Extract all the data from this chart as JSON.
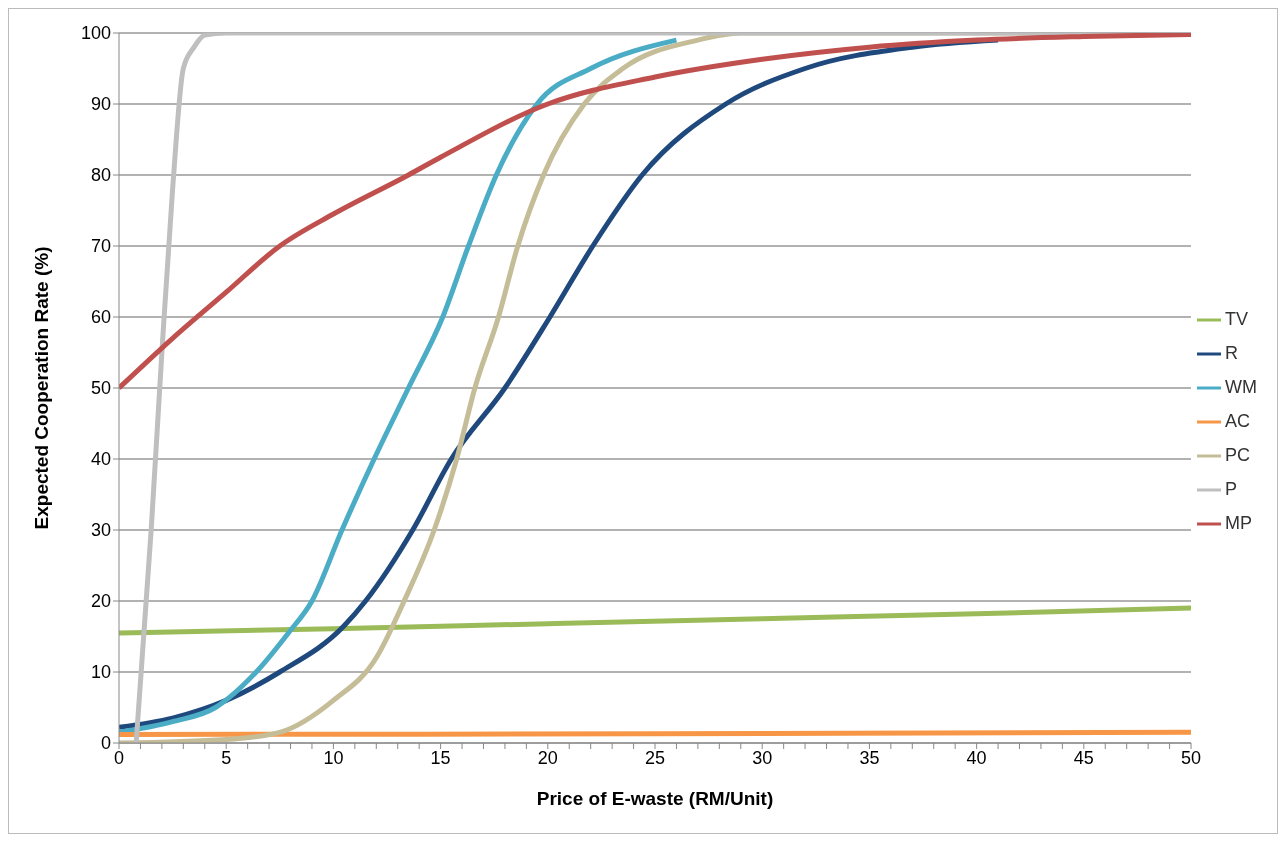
{
  "chart_data": {
    "type": "line",
    "xlabel": "Price of E-waste (RM/Unit)",
    "ylabel": "Expected Cooperation Rate (%)",
    "xlim": [
      0,
      50
    ],
    "ylim": [
      0,
      100
    ],
    "xticks": [
      0,
      {
        "value": 1,
        "label": null
      },
      {
        "value": 2,
        "label": null
      },
      {
        "value": 3,
        "label": null
      },
      {
        "value": 4,
        "label": null
      },
      5,
      {
        "value": 6,
        "label": null
      },
      {
        "value": 7,
        "label": null
      },
      {
        "value": 8,
        "label": null
      },
      {
        "value": 9,
        "label": null
      },
      10,
      {
        "value": 11,
        "label": null
      },
      {
        "value": 12,
        "label": null
      },
      {
        "value": 13,
        "label": null
      },
      {
        "value": 14,
        "label": null
      },
      15,
      {
        "value": 16,
        "label": null
      },
      {
        "value": 17,
        "label": null
      },
      {
        "value": 18,
        "label": null
      },
      {
        "value": 19,
        "label": null
      },
      20,
      {
        "value": 21,
        "label": null
      },
      {
        "value": 22,
        "label": null
      },
      {
        "value": 23,
        "label": null
      },
      {
        "value": 24,
        "label": null
      },
      25,
      {
        "value": 26,
        "label": null
      },
      {
        "value": 27,
        "label": null
      },
      {
        "value": 28,
        "label": null
      },
      {
        "value": 29,
        "label": null
      },
      30,
      {
        "value": 31,
        "label": null
      },
      {
        "value": 32,
        "label": null
      },
      {
        "value": 33,
        "label": null
      },
      {
        "value": 34,
        "label": null
      },
      35,
      {
        "value": 36,
        "label": null
      },
      {
        "value": 37,
        "label": null
      },
      {
        "value": 38,
        "label": null
      },
      {
        "value": 39,
        "label": null
      },
      40,
      {
        "value": 41,
        "label": null
      },
      {
        "value": 42,
        "label": null
      },
      {
        "value": 43,
        "label": null
      },
      {
        "value": 44,
        "label": null
      },
      45,
      {
        "value": 46,
        "label": null
      },
      {
        "value": 47,
        "label": null
      },
      {
        "value": 48,
        "label": null
      },
      {
        "value": 49,
        "label": null
      },
      50
    ],
    "yticks": [
      0,
      10,
      20,
      30,
      40,
      50,
      60,
      70,
      80,
      90,
      100
    ],
    "grid": "y",
    "legend": "right",
    "marker": "none",
    "line_style": "solid",
    "series": [
      {
        "name": "TV",
        "color": "#9bbb59",
        "x": [
          0,
          10,
          20,
          30,
          40,
          50
        ],
        "values": [
          15.5,
          16.1,
          16.8,
          17.5,
          18.2,
          19
        ]
      },
      {
        "name": "R",
        "color": "#1f497d",
        "x": [
          0,
          2.5,
          5,
          7.5,
          10.5,
          11.5,
          13.7,
          15.5,
          18,
          20.1,
          22.1,
          24.4,
          28.3,
          32,
          37,
          41
        ],
        "values": [
          2.2,
          3.5,
          6,
          10,
          16.5,
          20,
          30,
          40,
          50,
          60,
          70,
          80,
          90,
          95,
          98,
          99
        ]
      },
      {
        "name": "WM",
        "color": "#4bacc6",
        "x": [
          0,
          2.5,
          4.5,
          6.4,
          7.9,
          9,
          10.4,
          11.9,
          13.5,
          15.1,
          16.3,
          17.6,
          19.5,
          22,
          26
        ],
        "values": [
          1.5,
          3,
          5,
          10,
          15.5,
          20,
          30,
          40,
          50,
          60,
          70,
          80,
          90,
          95,
          99
        ]
      },
      {
        "name": "AC",
        "color": "#f79646",
        "x": [
          0,
          25,
          50
        ],
        "values": [
          1.2,
          1.3,
          1.5
        ]
      },
      {
        "name": "PC",
        "color": "#c4bd97",
        "x": [
          0,
          5,
          7.5,
          10,
          12,
          13.3,
          14.7,
          15.75,
          16.6,
          17.7,
          18.6,
          19.8,
          21.7,
          23.5,
          27,
          29,
          50
        ],
        "values": [
          0,
          0.5,
          1.5,
          6,
          12,
          20,
          30,
          40,
          50,
          60,
          70,
          80,
          90,
          95,
          99,
          100,
          100
        ]
      },
      {
        "name": "P",
        "color": "#bfbfbf",
        "x": [
          0.8,
          1.5,
          2,
          2.5,
          3,
          3.5,
          4,
          5,
          50
        ],
        "values": [
          0,
          30,
          55,
          78,
          95,
          98,
          99.7,
          100,
          100
        ]
      },
      {
        "name": "MP",
        "color": "#c0504d",
        "x": [
          0,
          2.5,
          5,
          7.5,
          10,
          13.5,
          15,
          20,
          25,
          30,
          35,
          40,
          45,
          50
        ],
        "values": [
          50,
          57,
          63.5,
          70,
          74.5,
          80,
          82.5,
          90,
          93.8,
          96.3,
          98,
          99,
          99.5,
          99.8
        ]
      }
    ]
  }
}
